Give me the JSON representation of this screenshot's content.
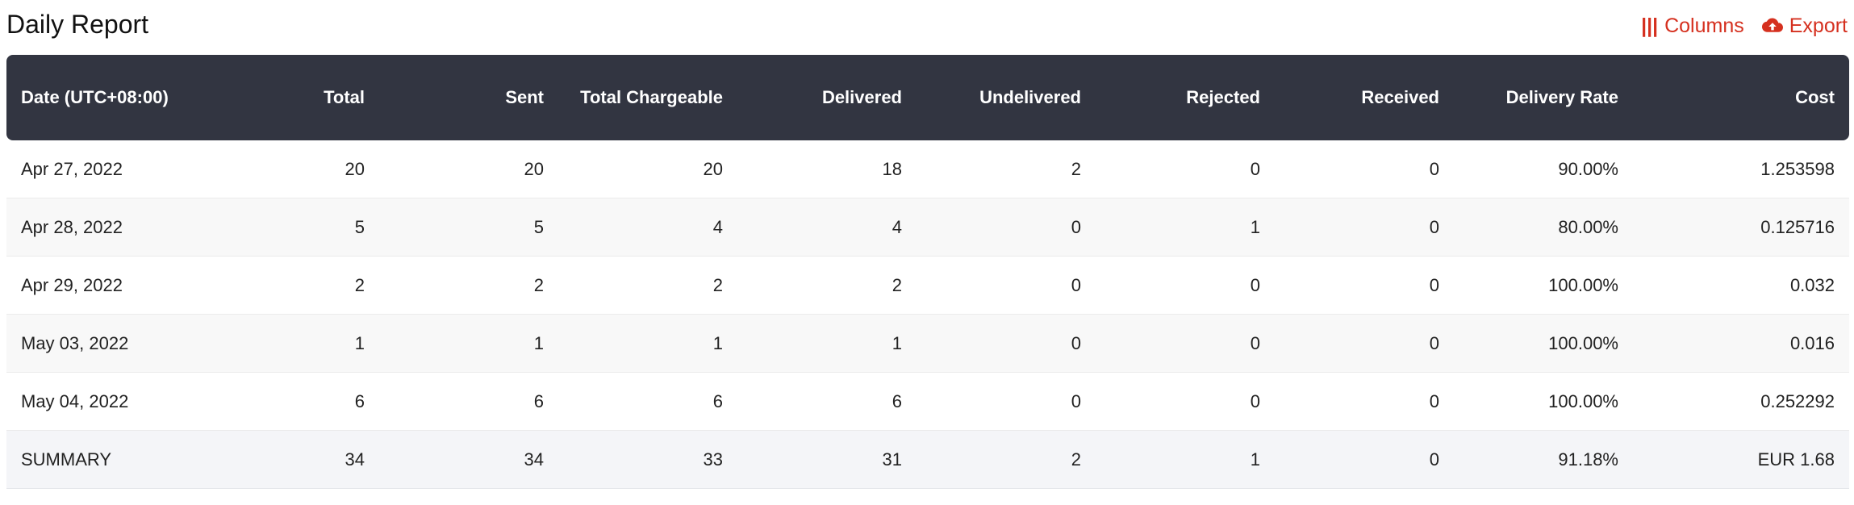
{
  "page": {
    "title": "Daily Report"
  },
  "toolbar": {
    "columns_icon": "|||",
    "columns_label": "Columns",
    "export_label": "Export",
    "accent_color": "#d5301f",
    "export_icon": "cloud-upload-icon"
  },
  "table": {
    "header_bg": "#323541",
    "columns": [
      "Date (UTC+08:00)",
      "Total",
      "Sent",
      "Total Chargeable",
      "Delivered",
      "Undelivered",
      "Rejected",
      "Received",
      "Delivery Rate",
      "Cost"
    ],
    "rows": [
      [
        "Apr 27, 2022",
        "20",
        "20",
        "20",
        "18",
        "2",
        "0",
        "0",
        "90.00%",
        "1.253598"
      ],
      [
        "Apr 28, 2022",
        "5",
        "5",
        "4",
        "4",
        "0",
        "1",
        "0",
        "80.00%",
        "0.125716"
      ],
      [
        "Apr 29, 2022",
        "2",
        "2",
        "2",
        "2",
        "0",
        "0",
        "0",
        "100.00%",
        "0.032"
      ],
      [
        "May 03, 2022",
        "1",
        "1",
        "1",
        "1",
        "0",
        "0",
        "0",
        "100.00%",
        "0.016"
      ],
      [
        "May 04, 2022",
        "6",
        "6",
        "6",
        "6",
        "0",
        "0",
        "0",
        "100.00%",
        "0.252292"
      ]
    ],
    "summary": [
      "SUMMARY",
      "34",
      "34",
      "33",
      "31",
      "2",
      "1",
      "0",
      "91.18%",
      "EUR 1.68"
    ]
  }
}
